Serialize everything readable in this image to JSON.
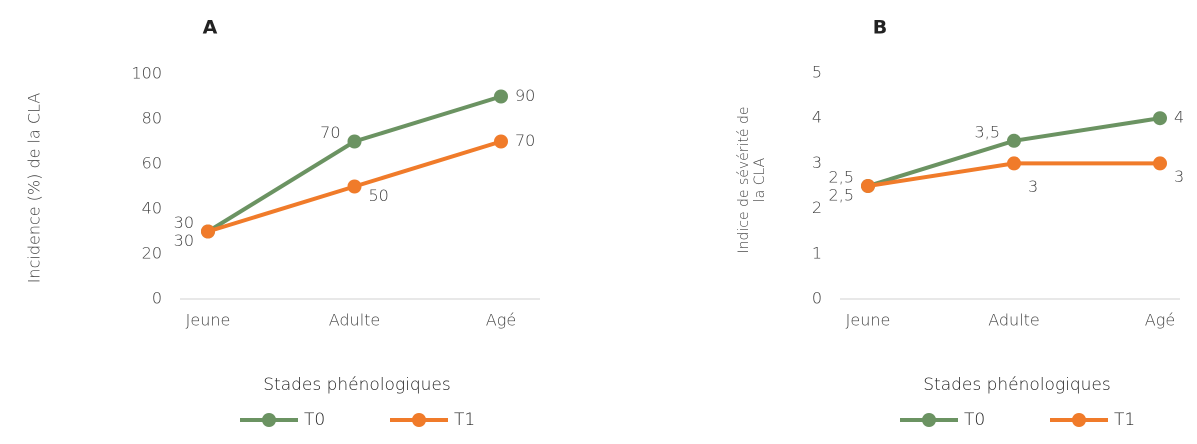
{
  "chart_data": [
    {
      "type": "line",
      "title": "A",
      "y_label": "Incidence (%) de la CLA",
      "x_label": "Stades phénologiques",
      "categories": [
        "Jeune",
        "Adulte",
        "Agé"
      ],
      "series": [
        {
          "name": "T0",
          "color": "#6b9362",
          "values": [
            30,
            70,
            90
          ]
        },
        {
          "name": "T1",
          "color": "#f07b2a",
          "values": [
            30,
            50,
            70
          ]
        }
      ],
      "ylim": [
        0,
        100
      ],
      "yticks": [
        0,
        20,
        40,
        60,
        80,
        100
      ]
    },
    {
      "type": "line",
      "title": "B",
      "y_label": "Indice de sévérité de la CLA",
      "x_label": "Stades phénologiques",
      "categories": [
        "Jeune",
        "Adulte",
        "Agé"
      ],
      "series": [
        {
          "name": "T0",
          "color": "#6b9362",
          "values": [
            2.5,
            3.5,
            4
          ],
          "value_labels": [
            "2,5",
            "3,5",
            "4"
          ]
        },
        {
          "name": "T1",
          "color": "#f07b2a",
          "values": [
            2.5,
            3,
            3
          ],
          "value_labels": [
            "2,5",
            "3",
            "3"
          ]
        }
      ],
      "ylim": [
        0,
        5
      ],
      "yticks": [
        0,
        1,
        2,
        3,
        4,
        5
      ]
    }
  ]
}
